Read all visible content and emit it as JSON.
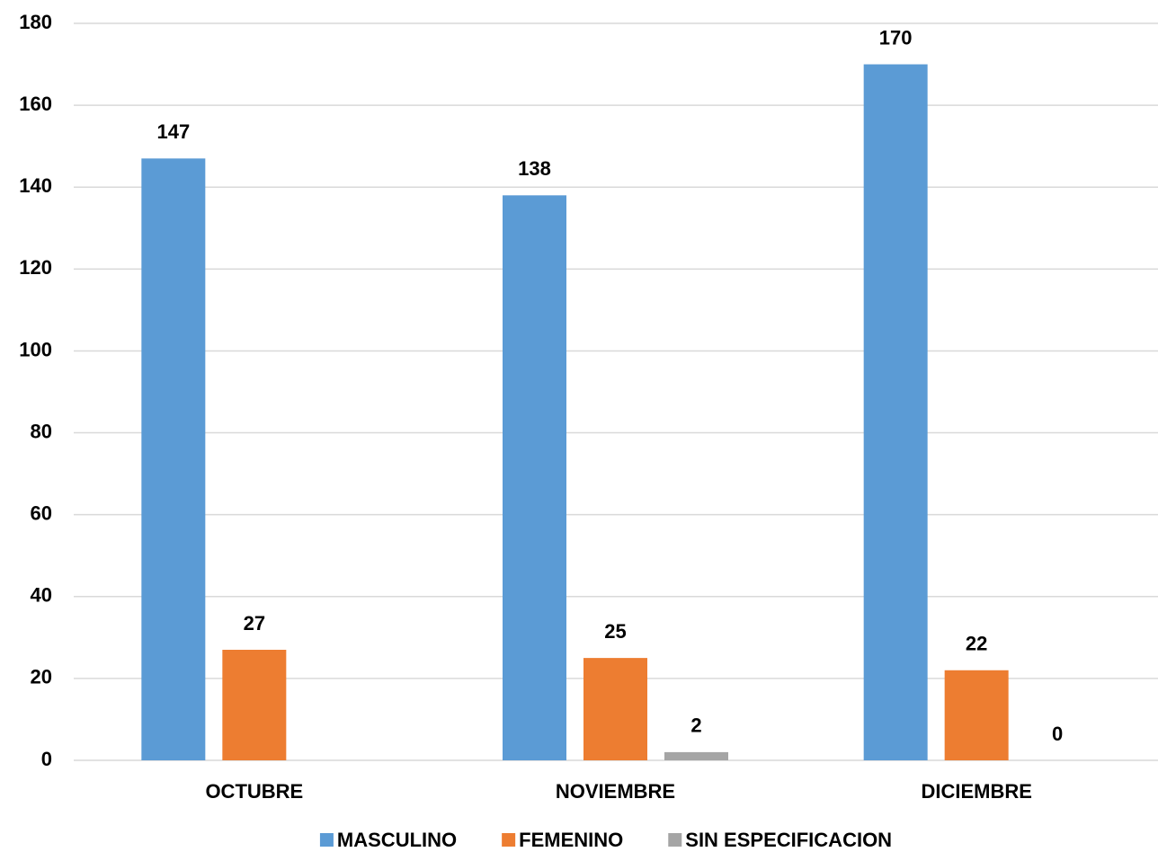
{
  "chart_data": {
    "type": "bar",
    "categories": [
      "OCTUBRE",
      "NOVIEMBRE",
      "DICIEMBRE"
    ],
    "series": [
      {
        "name": "MASCULINO",
        "color": "#5b9bd5",
        "values": [
          147,
          138,
          170
        ]
      },
      {
        "name": "FEMENINO",
        "color": "#ed7d31",
        "values": [
          27,
          25,
          22
        ]
      },
      {
        "name": "SIN ESPECIFICACION",
        "color": "#a5a5a5",
        "values": [
          null,
          2,
          0
        ]
      }
    ],
    "ylim": [
      0,
      180
    ],
    "yticks": [
      0,
      20,
      40,
      60,
      80,
      100,
      120,
      140,
      160,
      180
    ],
    "grid": true,
    "legend": "bottom"
  }
}
